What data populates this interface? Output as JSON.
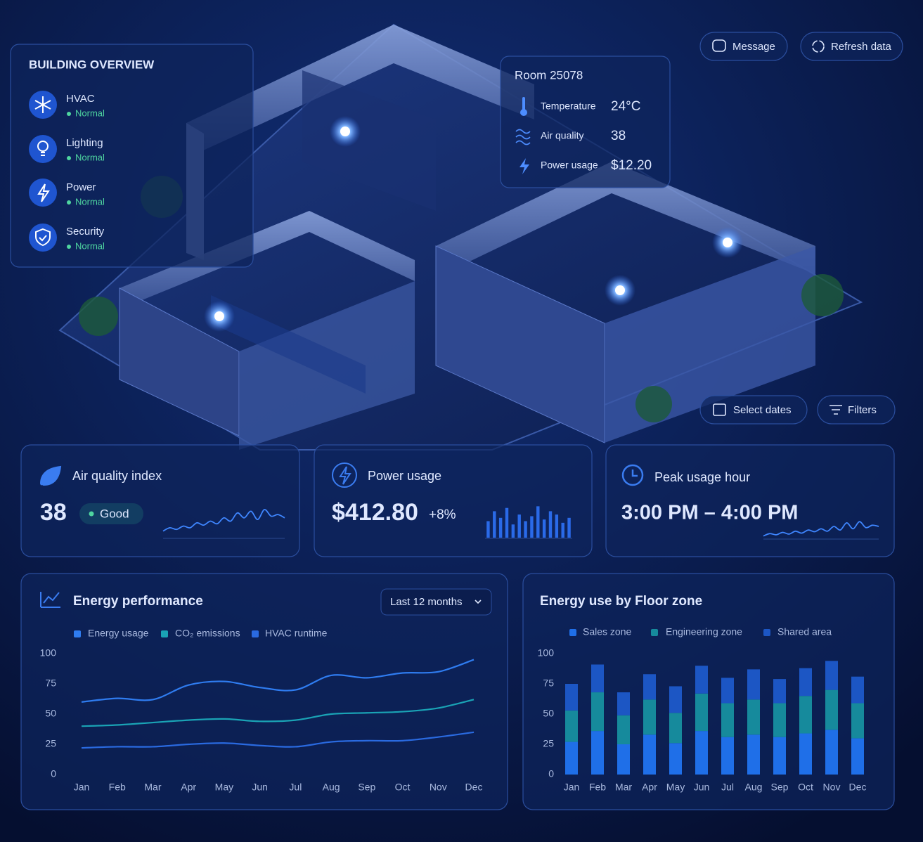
{
  "overview": {
    "title": "BUILDING OVERVIEW",
    "items": [
      {
        "label": "HVAC",
        "status": "Normal"
      },
      {
        "label": "Lighting",
        "status": "Normal"
      },
      {
        "label": "Power",
        "status": "Normal"
      },
      {
        "label": "Security",
        "status": "Normal"
      }
    ]
  },
  "buttons": {
    "message": "Message",
    "refresh": "Refresh data",
    "select_dates": "Select dates",
    "filters": "Filters"
  },
  "room": {
    "title": "Room 25078",
    "metrics": [
      {
        "label": "Temperature",
        "value": "24°C"
      },
      {
        "label": "Air quality",
        "value": 38
      },
      {
        "label": "Power usage",
        "value": "$12.20"
      }
    ]
  },
  "kpis": {
    "air_quality": {
      "title": "Air quality index",
      "value": 38,
      "badge": "Good",
      "spark": {
        "type": "line",
        "ylim": [
          0,
          10
        ],
        "values": [
          2,
          3,
          2.5,
          3.5,
          3,
          4.5,
          3.8,
          5,
          4.2,
          6,
          5,
          7.5,
          6,
          8,
          5.5,
          8.5,
          6.5,
          7,
          6
        ]
      }
    },
    "power": {
      "title": "Power usage",
      "value": "$412.80",
      "change": "+8%",
      "spark": {
        "type": "bar",
        "ylim": [
          0,
          10
        ],
        "values": [
          5,
          8,
          6,
          9,
          4,
          7,
          5,
          6.5,
          9.5,
          5.5,
          8,
          7,
          4.5,
          6
        ]
      }
    },
    "peak": {
      "title": "Peak usage hour",
      "value": "3:00 PM – 4:00 PM",
      "spark": {
        "type": "line",
        "ylim": [
          0,
          10
        ],
        "values": [
          1,
          2,
          1.5,
          2.5,
          1.8,
          3,
          2.2,
          3.5,
          2.8,
          4,
          3,
          5,
          3.5,
          6.5,
          4,
          7,
          4.5,
          5.5,
          5
        ]
      }
    }
  },
  "chart_data": [
    {
      "type": "line",
      "title": "Energy performance",
      "range_selector": "Last 12 months",
      "categories": [
        "Jan",
        "Feb",
        "Mar",
        "Apr",
        "May",
        "Jun",
        "Jul",
        "Aug",
        "Sep",
        "Oct",
        "Nov",
        "Dec"
      ],
      "series": [
        {
          "name": "Energy usage",
          "color": "#2f7cf0",
          "values": [
            60,
            63,
            62,
            74,
            77,
            72,
            70,
            82,
            80,
            84,
            85,
            95
          ]
        },
        {
          "name": "CO₂ emissions",
          "color": "#1aa3b5",
          "values": [
            40,
            41,
            43,
            45,
            46,
            44,
            45,
            50,
            51,
            52,
            55,
            62
          ]
        },
        {
          "name": "HVAC runtime",
          "color": "#2a6ae0",
          "values": [
            22,
            23,
            23,
            25,
            26,
            24,
            23,
            27,
            28,
            28,
            31,
            35
          ]
        }
      ],
      "ylim": [
        0,
        100
      ],
      "yticks": [
        0,
        25,
        50,
        75,
        100
      ],
      "grid": false
    },
    {
      "type": "bar",
      "stacked": true,
      "title": "Energy use by Floor zone",
      "categories": [
        "Jan",
        "Feb",
        "Mar",
        "Apr",
        "May",
        "Jun",
        "Jul",
        "Aug",
        "Sep",
        "Oct",
        "Nov",
        "Dec"
      ],
      "series": [
        {
          "name": "Sales zone",
          "color": "#1f6fe8",
          "values": [
            27,
            36,
            25,
            33,
            26,
            36,
            31,
            33,
            31,
            34,
            37,
            30
          ]
        },
        {
          "name": "Engineering zone",
          "color": "#168a9c",
          "values": [
            26,
            32,
            24,
            29,
            25,
            31,
            28,
            29,
            28,
            31,
            33,
            29
          ]
        },
        {
          "name": "Shared area",
          "color": "#1c56c4",
          "values": [
            22,
            23,
            19,
            21,
            22,
            23,
            21,
            25,
            20,
            23,
            24,
            22
          ]
        }
      ],
      "ylim": [
        0,
        100
      ],
      "yticks": [
        0,
        25,
        50,
        75,
        100
      ],
      "grid": false
    }
  ]
}
